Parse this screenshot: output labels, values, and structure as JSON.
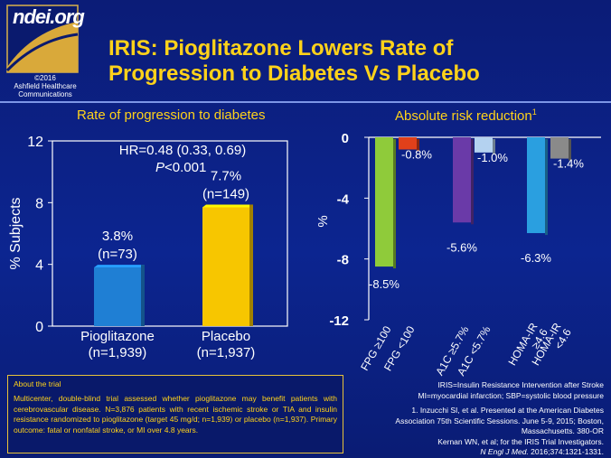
{
  "logo": {
    "brand": "ndei.org",
    "copyright": "©2016",
    "company_line1": "Ashfield Healthcare",
    "company_line2": "Communications"
  },
  "slide": {
    "title_line1": "IRIS: Pioglitazone Lowers Rate of",
    "title_line2": "Progression to Diabetes Vs Placebo"
  },
  "chart_data": [
    {
      "type": "bar",
      "title": "Rate of progression to diabetes",
      "ylabel": "% Subjects",
      "ylim": [
        0,
        12
      ],
      "yticks": [
        "0",
        "4",
        "8",
        "12"
      ],
      "categories": [
        {
          "line1": "Pioglitazone",
          "line2": "(n=1,939)"
        },
        {
          "line1": "Placebo",
          "line2": "(n=1,937)"
        }
      ],
      "values": [
        3.8,
        7.7
      ],
      "data_labels": [
        {
          "line1": "3.8%",
          "line2": "(n=73)"
        },
        {
          "line1": "7.7%",
          "line2": "(n=149)"
        }
      ],
      "colors": [
        "#1f7fd4",
        "#f7c600"
      ],
      "annotation": {
        "line1": "HR=0.48 (0.33, 0.69)",
        "p_label": "P",
        "p_value": "<0.001"
      }
    },
    {
      "type": "bar",
      "title": "Absolute risk reduction",
      "title_sup": "1",
      "ylabel": "%",
      "ylim": [
        -12,
        0
      ],
      "yticks": [
        "0",
        "-4",
        "-8",
        "-12"
      ],
      "categories": [
        "FPG ≥100",
        "FPG <100",
        "A1C ≥5.7%",
        "A1C <5.7%",
        "HOMA-IR ≥4.6",
        "HOMA-IR <4.6"
      ],
      "category_lines": [
        [
          "FPG ≥100"
        ],
        [
          "FPG <100"
        ],
        [
          "A1C ≥5.7%"
        ],
        [
          "A1C <5.7%"
        ],
        [
          "HOMA-IR",
          "≥4.6"
        ],
        [
          "HOMA-IR",
          "<4.6"
        ]
      ],
      "values": [
        -8.5,
        -0.8,
        -5.6,
        -1.0,
        -6.3,
        -1.4
      ],
      "data_labels": [
        "-8.5%",
        "-0.8%",
        "-5.6%",
        "-1.0%",
        "-6.3%",
        "-1.4%"
      ],
      "colors": [
        "#8fcb3a",
        "#e0401a",
        "#6a3aa8",
        "#b4d2f0",
        "#2a9fe0",
        "#8a8a8a"
      ]
    }
  ],
  "about": {
    "title": "About the trial",
    "body": "Multicenter, double-blind trial assessed whether pioglitazone may benefit patients with cerebrovascular disease. N=3,876 patients with recent ischemic stroke or TIA and insulin resistance randomized to pioglitazone (target 45 mg/d; n=1,939) or placebo (n=1,937). Primary outcome: fatal or nonfatal stroke, or MI over 4.8 years."
  },
  "notes": {
    "abbrev1": "IRIS=Insulin Resistance Intervention after Stroke",
    "abbrev2": "MI=myocardial infarction; SBP=systolic blood pressure",
    "ref1_line1": "1. Inzucchi SI, et al. Presented at the American Diabetes",
    "ref1_line2": "Association 75th Scientific Sessions. June 5-9, 2015; Boston,",
    "ref1_line3": "Massachusetts. 380-OR",
    "ref2_line1": "Kernan WN, et al; for the IRIS Trial Investigators.",
    "ref2_journal": "N Engl J Med.",
    "ref2_rest": " 2016;374:1321-1331."
  }
}
